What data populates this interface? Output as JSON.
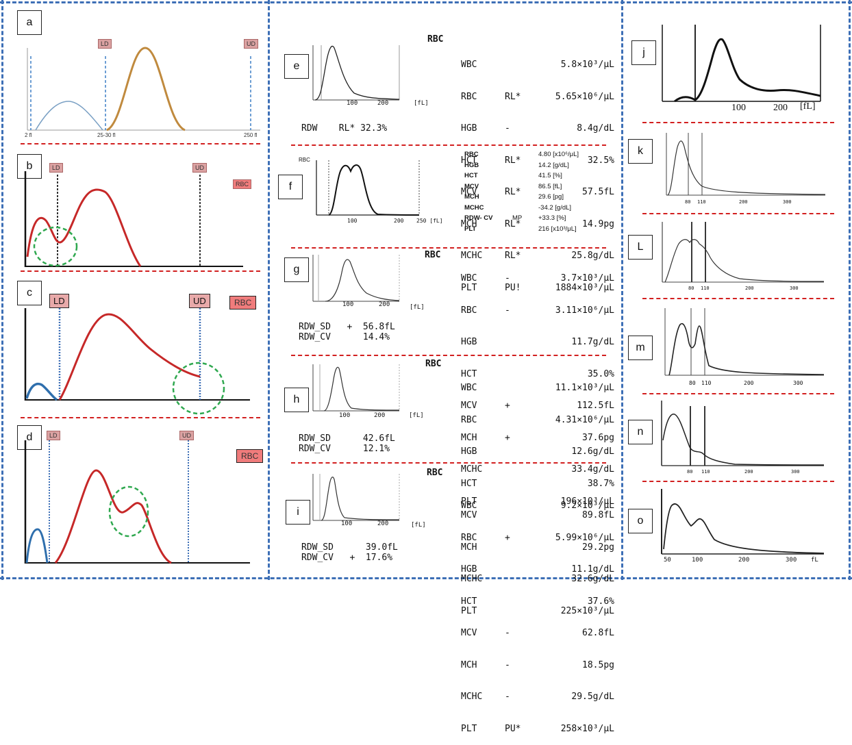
{
  "panels": {
    "a": {
      "tag": "a",
      "ld": "LD",
      "ud": "UD",
      "ticks": [
        "2 fl",
        "25-30 fl",
        "250 fl"
      ]
    },
    "b": {
      "tag": "b",
      "ld": "LD",
      "ud": "UD",
      "rbc": "RBC"
    },
    "c": {
      "tag": "c",
      "ld": "LD",
      "ud": "UD",
      "rbc": "RBC"
    },
    "d": {
      "tag": "d",
      "ld": "LD",
      "ud": "UD",
      "rbc": "RBC"
    },
    "e": {
      "tag": "e",
      "header": "RBC",
      "ticks": [
        "100",
        "200",
        "[fL]"
      ],
      "rdw": "RDW    RL* 32.3%",
      "rows": [
        {
          "k": "WBC",
          "f": "",
          "v": "5.8×10³/μL"
        },
        {
          "k": "RBC",
          "f": "RL*",
          "v": "5.65×10⁶/μL"
        },
        {
          "k": "HGB",
          "f": "-",
          "v": "8.4g/dL"
        },
        {
          "k": "HCT",
          "f": "RL*",
          "v": "32.5%"
        },
        {
          "k": "MCV",
          "f": "RL*",
          "v": "57.5fL"
        },
        {
          "k": "MCH",
          "f": "RL*",
          "v": "14.9pg"
        },
        {
          "k": "MCHC",
          "f": "RL*",
          "v": "25.8g/dL"
        },
        {
          "k": "PLT",
          "f": "PU!",
          "v": "1884×10³/μL"
        }
      ]
    },
    "f": {
      "tag": "f",
      "header": "RBC",
      "ticks": [
        "100",
        "200",
        "250 [fL]"
      ],
      "rows": [
        {
          "k": "RBC",
          "f": "",
          "v": "4.80 [x10⁶/μL]"
        },
        {
          "k": "HGB",
          "f": "",
          "v": "14.2 [g/dL]"
        },
        {
          "k": "HCT",
          "f": "",
          "v": "41.5 [%]"
        },
        {
          "k": "MCV",
          "f": "",
          "v": "86.5 [fL]"
        },
        {
          "k": "MCH",
          "f": "",
          "v": "29.6 [pg]"
        },
        {
          "k": "MCHC",
          "f": "",
          "v": "-34.2 [g/dL]"
        },
        {
          "k": "RDW- CV",
          "f": "MP",
          "v": "+33.3 [%]"
        },
        {
          "k": "PLT",
          "f": "",
          "v": "216 [x10³/μL]"
        }
      ]
    },
    "g": {
      "tag": "g",
      "header": "RBC",
      "ticks": [
        "100",
        "200",
        "[fL]"
      ],
      "rdw_sd": "RDW_SD   +  56.8fL",
      "rdw_cv": "RDW_CV      14.4%",
      "rows": [
        {
          "k": "WBC",
          "f": "-",
          "v": "3.7×10³/μL"
        },
        {
          "k": "RBC",
          "f": "-",
          "v": "3.11×10⁶/μL"
        },
        {
          "k": "HGB",
          "f": "",
          "v": "11.7g/dL"
        },
        {
          "k": "HCT",
          "f": "",
          "v": "35.0%"
        },
        {
          "k": "MCV",
          "f": "+",
          "v": "112.5fL"
        },
        {
          "k": "MCH",
          "f": "+",
          "v": "37.6pg"
        },
        {
          "k": "MCHC",
          "f": "",
          "v": "33.4g/dL"
        },
        {
          "k": "PLT",
          "f": "",
          "v": "196×10³/μL"
        }
      ]
    },
    "h": {
      "tag": "h",
      "header": "RBC",
      "ticks": [
        "100",
        "200",
        "[fL]"
      ],
      "rdw_sd": "RDW_SD      42.6fL",
      "rdw_cv": "RDW_CV      12.1%",
      "rows": [
        {
          "k": "WBC",
          "f": "",
          "v": "11.1×10³/μL"
        },
        {
          "k": "RBC",
          "f": "",
          "v": "4.31×10⁶/μL"
        },
        {
          "k": "HGB",
          "f": "",
          "v": "12.6g/dL"
        },
        {
          "k": "HCT",
          "f": "",
          "v": "38.7%"
        },
        {
          "k": "MCV",
          "f": "",
          "v": "89.8fL"
        },
        {
          "k": "MCH",
          "f": "",
          "v": "29.2pg"
        },
        {
          "k": "MCHC",
          "f": "",
          "v": "32.6g/dL"
        },
        {
          "k": "PLT",
          "f": "",
          "v": "225×10³/μL"
        }
      ]
    },
    "i": {
      "tag": "i",
      "header": "RBC",
      "ticks": [
        "100",
        "200",
        "[fL]"
      ],
      "rdw_sd": "RDW_SD      39.0fL",
      "rdw_cv": "RDW_CV   +  17.6%",
      "rows": [
        {
          "k": "WBC",
          "f": "",
          "v": "9.2×10³/μL"
        },
        {
          "k": "RBC",
          "f": "+",
          "v": "5.99×10⁶/μL"
        },
        {
          "k": "HGB",
          "f": "",
          "v": "11.1g/dL"
        },
        {
          "k": "HCT",
          "f": "",
          "v": "37.6%"
        },
        {
          "k": "MCV",
          "f": "-",
          "v": "62.8fL"
        },
        {
          "k": "MCH",
          "f": "-",
          "v": "18.5pg"
        },
        {
          "k": "MCHC",
          "f": "-",
          "v": "29.5g/dL"
        },
        {
          "k": "PLT",
          "f": "PU*",
          "v": "258×10³/μL"
        }
      ]
    },
    "j": {
      "tag": "j",
      "ticks": [
        "100",
        "200",
        "[fL]"
      ]
    },
    "k": {
      "tag": "k",
      "ticks": [
        "80",
        "110",
        "200",
        "300"
      ]
    },
    "l": {
      "tag": "L",
      "ticks": [
        "80",
        "110",
        "200",
        "300"
      ]
    },
    "m": {
      "tag": "m",
      "ticks": [
        "80",
        "110",
        "200",
        "300"
      ]
    },
    "n": {
      "tag": "n",
      "ticks": [
        "80",
        "110",
        "200",
        "300"
      ]
    },
    "o": {
      "tag": "o",
      "ticks": [
        "50",
        "100",
        "200",
        "300",
        "fL"
      ]
    }
  },
  "colors": {
    "blue_border": "#3d6fb6",
    "red_sep": "#d21f1f",
    "rbc_curve": "#c62828",
    "plt_curve": "#2f6fad",
    "gold_curve": "#c08a3e",
    "circle": "#2fa84f"
  },
  "chart_data": [
    {
      "type": "line",
      "panel": "a",
      "x": [
        2,
        25,
        250
      ],
      "xlabel": "",
      "series": [
        {
          "values": [
            0,
            0.55,
            0
          ]
        },
        {
          "values": [
            0,
            1,
            0
          ]
        }
      ]
    },
    {
      "type": "line",
      "panel": "b",
      "series": [
        {
          "values": [
            0.55,
            0.3,
            0.95,
            0
          ]
        }
      ]
    },
    {
      "type": "line",
      "panel": "c",
      "series": [
        {
          "values": [
            0.2,
            0,
            1,
            0.25
          ]
        }
      ]
    },
    {
      "type": "line",
      "panel": "d",
      "series": [
        {
          "values": [
            0.3,
            0,
            1,
            0.45,
            0.52,
            0
          ]
        }
      ]
    },
    {
      "type": "line",
      "panel": "e",
      "x": [
        100,
        200
      ]
    },
    {
      "type": "line",
      "panel": "f",
      "x": [
        100,
        200,
        250
      ]
    },
    {
      "type": "line",
      "panel": "g",
      "x": [
        100,
        200
      ]
    },
    {
      "type": "line",
      "panel": "h",
      "x": [
        100,
        200
      ]
    },
    {
      "type": "line",
      "panel": "i",
      "x": [
        100,
        200
      ]
    },
    {
      "type": "line",
      "panel": "j",
      "x": [
        100,
        200
      ]
    },
    {
      "type": "line",
      "panel": "k",
      "x": [
        80,
        110,
        200,
        300
      ]
    },
    {
      "type": "line",
      "panel": "L",
      "x": [
        80,
        110,
        200,
        300
      ]
    },
    {
      "type": "line",
      "panel": "m",
      "x": [
        80,
        110,
        200,
        300
      ]
    },
    {
      "type": "line",
      "panel": "n",
      "x": [
        80,
        110,
        200,
        300
      ]
    },
    {
      "type": "line",
      "panel": "o",
      "x": [
        50,
        100,
        200,
        300
      ]
    }
  ]
}
